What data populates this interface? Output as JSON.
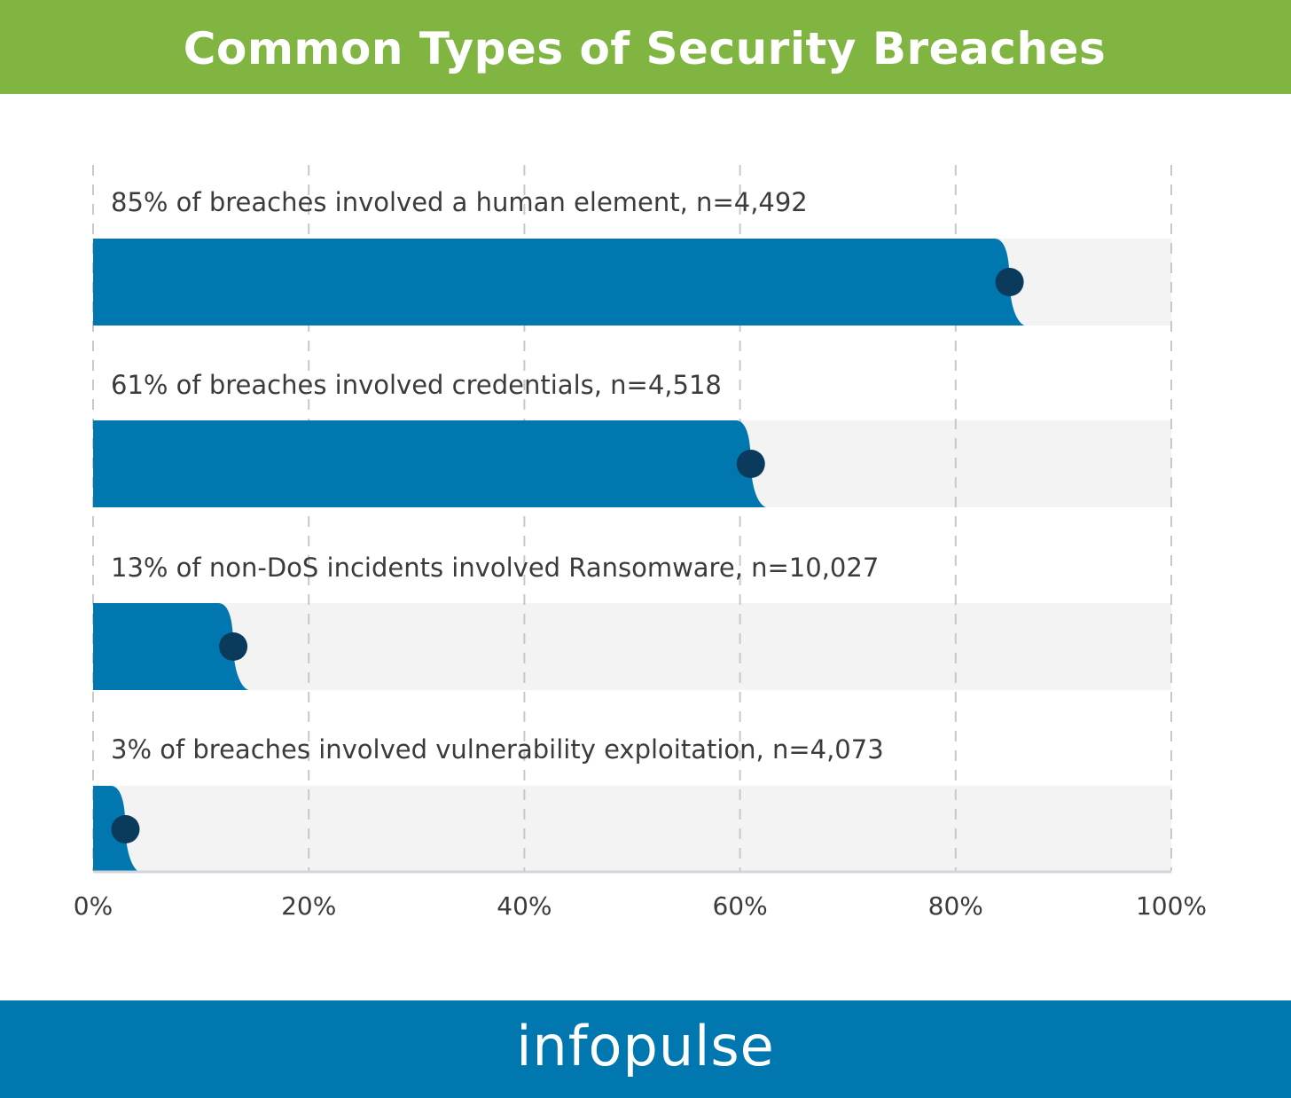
{
  "colors": {
    "header_bg": "#80b541",
    "footer_bg": "#0077ae",
    "bar_fill": "#0077ae",
    "track_fill": "#f3f3f3",
    "marker_fill": "#0a3a5c",
    "grid": "#c8c8c8",
    "axis": "#d2d4dc"
  },
  "header": {
    "title": "Common Types of Security Breaches"
  },
  "footer": {
    "logo_text": "infopulse"
  },
  "chart_data": {
    "type": "bar",
    "orientation": "horizontal",
    "title": "Common Types of Security Breaches",
    "xlim": [
      0,
      100
    ],
    "xticks": [
      0,
      20,
      40,
      60,
      80,
      100
    ],
    "tick_labels": [
      "0%",
      "20%",
      "40%",
      "60%",
      "80%",
      "100%"
    ],
    "grid": "vertical dashed",
    "bars": [
      {
        "label": "85% of breaches involved a human element, n=4,492",
        "value": 85
      },
      {
        "label": "61% of breaches involved credentials, n=4,518",
        "value": 61
      },
      {
        "label": "13% of non-DoS incidents involved Ransomware, n=10,027",
        "value": 13
      },
      {
        "label": "3% of breaches involved vulnerability exploitation, n=4,073",
        "value": 3
      }
    ]
  }
}
